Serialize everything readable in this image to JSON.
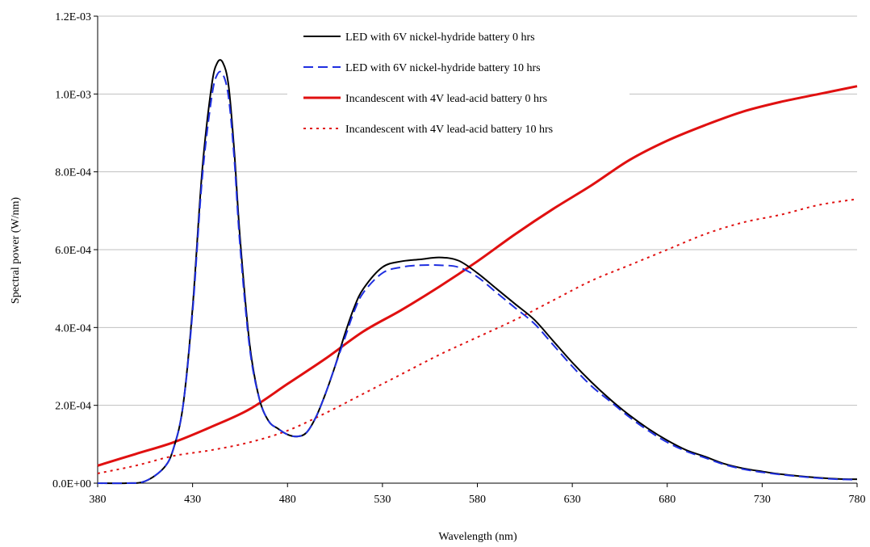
{
  "chart_data": {
    "type": "line",
    "title": "",
    "xlabel": "Wavelength (nm)",
    "ylabel": "Spectral power (W/nm)",
    "xlim": [
      380,
      780
    ],
    "ylim": [
      0,
      0.0012
    ],
    "x_ticks": [
      380,
      430,
      480,
      530,
      580,
      630,
      680,
      730,
      780
    ],
    "x_tick_labels": [
      "380",
      "430",
      "480",
      "530",
      "580",
      "630",
      "680",
      "730",
      "780"
    ],
    "y_ticks": [
      0,
      0.0002,
      0.0004,
      0.0006,
      0.0008,
      0.001,
      0.0012
    ],
    "y_tick_labels": [
      "0.0E+00",
      "2.0E-04",
      "4.0E-04",
      "6.0E-04",
      "8.0E-04",
      "1.0E-03",
      "1.2E-03"
    ],
    "grid": "horizontal",
    "legend_position": "top-center",
    "series": [
      {
        "name": "LED with 6V nickel-hydride battery 0 hrs",
        "color": "#000000",
        "style": "solid",
        "x": [
          380,
          395,
          405,
          415,
          420,
          425,
          430,
          435,
          440,
          443,
          446,
          449,
          452,
          455,
          460,
          465,
          470,
          475,
          480,
          485,
          490,
          495,
          500,
          505,
          510,
          515,
          520,
          530,
          540,
          550,
          560,
          570,
          580,
          590,
          600,
          610,
          620,
          630,
          640,
          650,
          660,
          670,
          680,
          690,
          700,
          710,
          720,
          730,
          740,
          750,
          760,
          770,
          780
        ],
        "y": [
          0,
          0,
          5e-06,
          4e-05,
          9e-05,
          0.0002,
          0.00045,
          0.0008,
          0.00102,
          0.00108,
          0.00108,
          0.00102,
          0.00085,
          0.00063,
          0.00036,
          0.00022,
          0.00016,
          0.00014,
          0.000125,
          0.00012,
          0.00013,
          0.00017,
          0.00023,
          0.0003,
          0.00038,
          0.00045,
          0.0005,
          0.000555,
          0.00057,
          0.000575,
          0.00058,
          0.000572,
          0.00054,
          0.0005,
          0.00046,
          0.00042,
          0.000365,
          0.00031,
          0.00026,
          0.000215,
          0.000175,
          0.00014,
          0.00011,
          8.5e-05,
          6.8e-05,
          5e-05,
          3.8e-05,
          3e-05,
          2.3e-05,
          1.8e-05,
          1.4e-05,
          1.1e-05,
          1e-05
        ]
      },
      {
        "name": "LED with 6V nickel-hydride battery 10 hrs",
        "color": "#1f2fe0",
        "style": "dashed",
        "x": [
          380,
          395,
          405,
          415,
          420,
          425,
          430,
          435,
          440,
          443,
          446,
          449,
          452,
          455,
          460,
          465,
          470,
          475,
          480,
          485,
          490,
          495,
          500,
          505,
          510,
          515,
          520,
          530,
          540,
          550,
          560,
          570,
          580,
          590,
          600,
          610,
          620,
          630,
          640,
          650,
          660,
          670,
          680,
          690,
          700,
          710,
          720,
          730,
          740,
          750,
          760,
          770,
          780
        ],
        "y": [
          0,
          0,
          5e-06,
          4e-05,
          9e-05,
          0.0002,
          0.00044,
          0.00078,
          0.00099,
          0.00105,
          0.00105,
          0.00099,
          0.00083,
          0.00061,
          0.00035,
          0.00022,
          0.00016,
          0.00014,
          0.000125,
          0.00012,
          0.00013,
          0.00017,
          0.00023,
          0.0003,
          0.00037,
          0.00044,
          0.00049,
          0.00054,
          0.000555,
          0.00056,
          0.00056,
          0.000555,
          0.00053,
          0.00049,
          0.00045,
          0.00041,
          0.000355,
          0.0003,
          0.00025,
          0.00021,
          0.00017,
          0.000135,
          0.000105,
          8.2e-05,
          6.5e-05,
          4.8e-05,
          3.6e-05,
          2.8e-05,
          2.2e-05,
          1.7e-05,
          1.3e-05,
          1e-05,
          9e-06
        ]
      },
      {
        "name": "Incandescent with 4V lead-acid battery 0 hrs",
        "color": "#e01010",
        "style": "solid",
        "x": [
          380,
          400,
          420,
          440,
          460,
          480,
          500,
          520,
          540,
          560,
          580,
          600,
          620,
          640,
          660,
          680,
          700,
          720,
          740,
          760,
          780
        ],
        "y": [
          4.5e-05,
          7.5e-05,
          0.000105,
          0.000145,
          0.00019,
          0.000255,
          0.00032,
          0.00039,
          0.000445,
          0.000505,
          0.00057,
          0.00064,
          0.000705,
          0.000765,
          0.00083,
          0.00088,
          0.00092,
          0.000955,
          0.00098,
          0.001,
          0.00102
        ]
      },
      {
        "name": "Incandescent with 4V lead-acid battery 10 hrs",
        "color": "#e01010",
        "style": "dotted",
        "x": [
          380,
          400,
          420,
          440,
          460,
          480,
          500,
          520,
          540,
          560,
          580,
          600,
          620,
          640,
          660,
          680,
          700,
          720,
          740,
          760,
          780
        ],
        "y": [
          2.5e-05,
          4.5e-05,
          7e-05,
          8.5e-05,
          0.000105,
          0.000135,
          0.00018,
          0.00023,
          0.00028,
          0.00033,
          0.000375,
          0.00042,
          0.00047,
          0.00052,
          0.00056,
          0.0006,
          0.00064,
          0.00067,
          0.00069,
          0.000715,
          0.00073
        ]
      }
    ]
  }
}
